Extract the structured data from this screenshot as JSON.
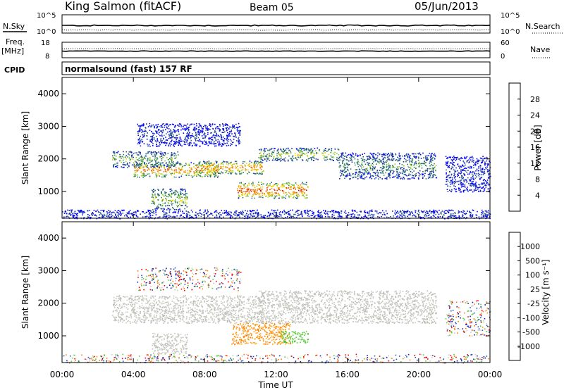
{
  "header": {
    "station": "King Salmon (fitACF)",
    "beam": "Beam 05",
    "date": "05/Jun/2013"
  },
  "ops_panel": {
    "nsky_label": "N.Sky",
    "nsearch_label": "N.Search",
    "freq_label_1": "Freq.",
    "freq_label_2": "[MHz]",
    "nave_label": "Nave",
    "cpid_label": "CPID",
    "cpid_value": "normalsound (fast) 157 RF",
    "noise_ticks_left": [
      "10^5",
      "10^0"
    ],
    "noise_ticks_right": [
      "10^5",
      "10^0"
    ],
    "freq_ticks": [
      "18",
      "8"
    ],
    "nave_ticks": [
      "60",
      "0"
    ]
  },
  "chart_data": [
    {
      "type": "heatmap",
      "name": "power",
      "ylabel": "Slant Range [km]",
      "ylim": [
        180,
        4500
      ],
      "yticks": [
        "4000",
        "3000",
        "2000",
        "1000"
      ],
      "xlim": [
        0,
        24
      ],
      "colorbar": {
        "label": "Power [dB]",
        "ticks": [
          "28",
          "24",
          "20",
          "16",
          "12",
          "8",
          "4"
        ],
        "colors": [
          "#0000ff",
          "#1a2ea3",
          "#2e6b7a",
          "#3a8c5a",
          "#90cf30",
          "#f2d000",
          "#f5a000",
          "#f07800",
          "#e63c00",
          "#d80000"
        ]
      },
      "echo_regions": [
        {
          "t0": 2.8,
          "t1": 6.5,
          "r0": 1750,
          "r1": 2250,
          "level": 0.3
        },
        {
          "t0": 4.0,
          "t1": 8.8,
          "r0": 1450,
          "r1": 1900,
          "level": 0.55
        },
        {
          "t0": 7.5,
          "t1": 11.3,
          "r0": 1550,
          "r1": 1950,
          "level": 0.55
        },
        {
          "t0": 11.0,
          "t1": 15.5,
          "r0": 1950,
          "r1": 2350,
          "level": 0.35
        },
        {
          "t0": 15.5,
          "t1": 21.0,
          "r0": 1400,
          "r1": 2200,
          "level": 0.25
        },
        {
          "t0": 9.8,
          "t1": 13.8,
          "r0": 800,
          "r1": 1300,
          "level": 0.65
        },
        {
          "t0": 5.0,
          "t1": 7.0,
          "r0": 450,
          "r1": 1100,
          "level": 0.35
        },
        {
          "t0": 4.2,
          "t1": 10.0,
          "r0": 2400,
          "r1": 3100,
          "level": 0.1
        },
        {
          "t0": 21.5,
          "t1": 24.0,
          "r0": 1000,
          "r1": 2100,
          "level": 0.1
        },
        {
          "t0": 0.0,
          "t1": 24.0,
          "r0": 180,
          "r1": 450,
          "level": 0.1
        }
      ]
    },
    {
      "type": "heatmap",
      "name": "velocity",
      "ylabel": "Slant Range [km]",
      "xlabel": "Time UT",
      "ylim": [
        180,
        4500
      ],
      "yticks": [
        "4000",
        "3000",
        "2000",
        "1000"
      ],
      "xlim": [
        0,
        24
      ],
      "xticks": [
        "00:00",
        "04:00",
        "08:00",
        "12:00",
        "16:00",
        "20:00",
        "00:00"
      ],
      "colorbar": {
        "label": "Velocity [m s⁻¹]",
        "ticks": [
          "1000",
          "500",
          "100",
          "25",
          "-25",
          "-100",
          "-500",
          "-1000"
        ],
        "colors": [
          "#1a1aa0",
          "#2255c8",
          "#2e7d32",
          "#55cc33",
          "#c8c8c0",
          "#c8c8c0",
          "#ffa020",
          "#ff7a00",
          "#ff3300",
          "#ff0000"
        ]
      },
      "echo_regions": [
        {
          "t0": 2.8,
          "t1": 11.3,
          "r0": 1400,
          "r1": 2250,
          "v": "gray"
        },
        {
          "t0": 11.0,
          "t1": 21.0,
          "r0": 1400,
          "r1": 2400,
          "v": "gray"
        },
        {
          "t0": 9.5,
          "t1": 12.8,
          "r0": 750,
          "r1": 1400,
          "v": "orange"
        },
        {
          "t0": 12.2,
          "t1": 13.8,
          "r0": 800,
          "r1": 1150,
          "v": "green"
        },
        {
          "t0": 5.0,
          "t1": 7.0,
          "r0": 450,
          "r1": 1100,
          "v": "gray"
        },
        {
          "t0": 4.2,
          "t1": 10.0,
          "r0": 2400,
          "r1": 3100,
          "v": "mixed"
        },
        {
          "t0": 21.5,
          "t1": 24.0,
          "r0": 1000,
          "r1": 2100,
          "v": "mixed"
        },
        {
          "t0": 0.0,
          "t1": 24.0,
          "r0": 180,
          "r1": 450,
          "v": "mixed"
        }
      ]
    }
  ]
}
